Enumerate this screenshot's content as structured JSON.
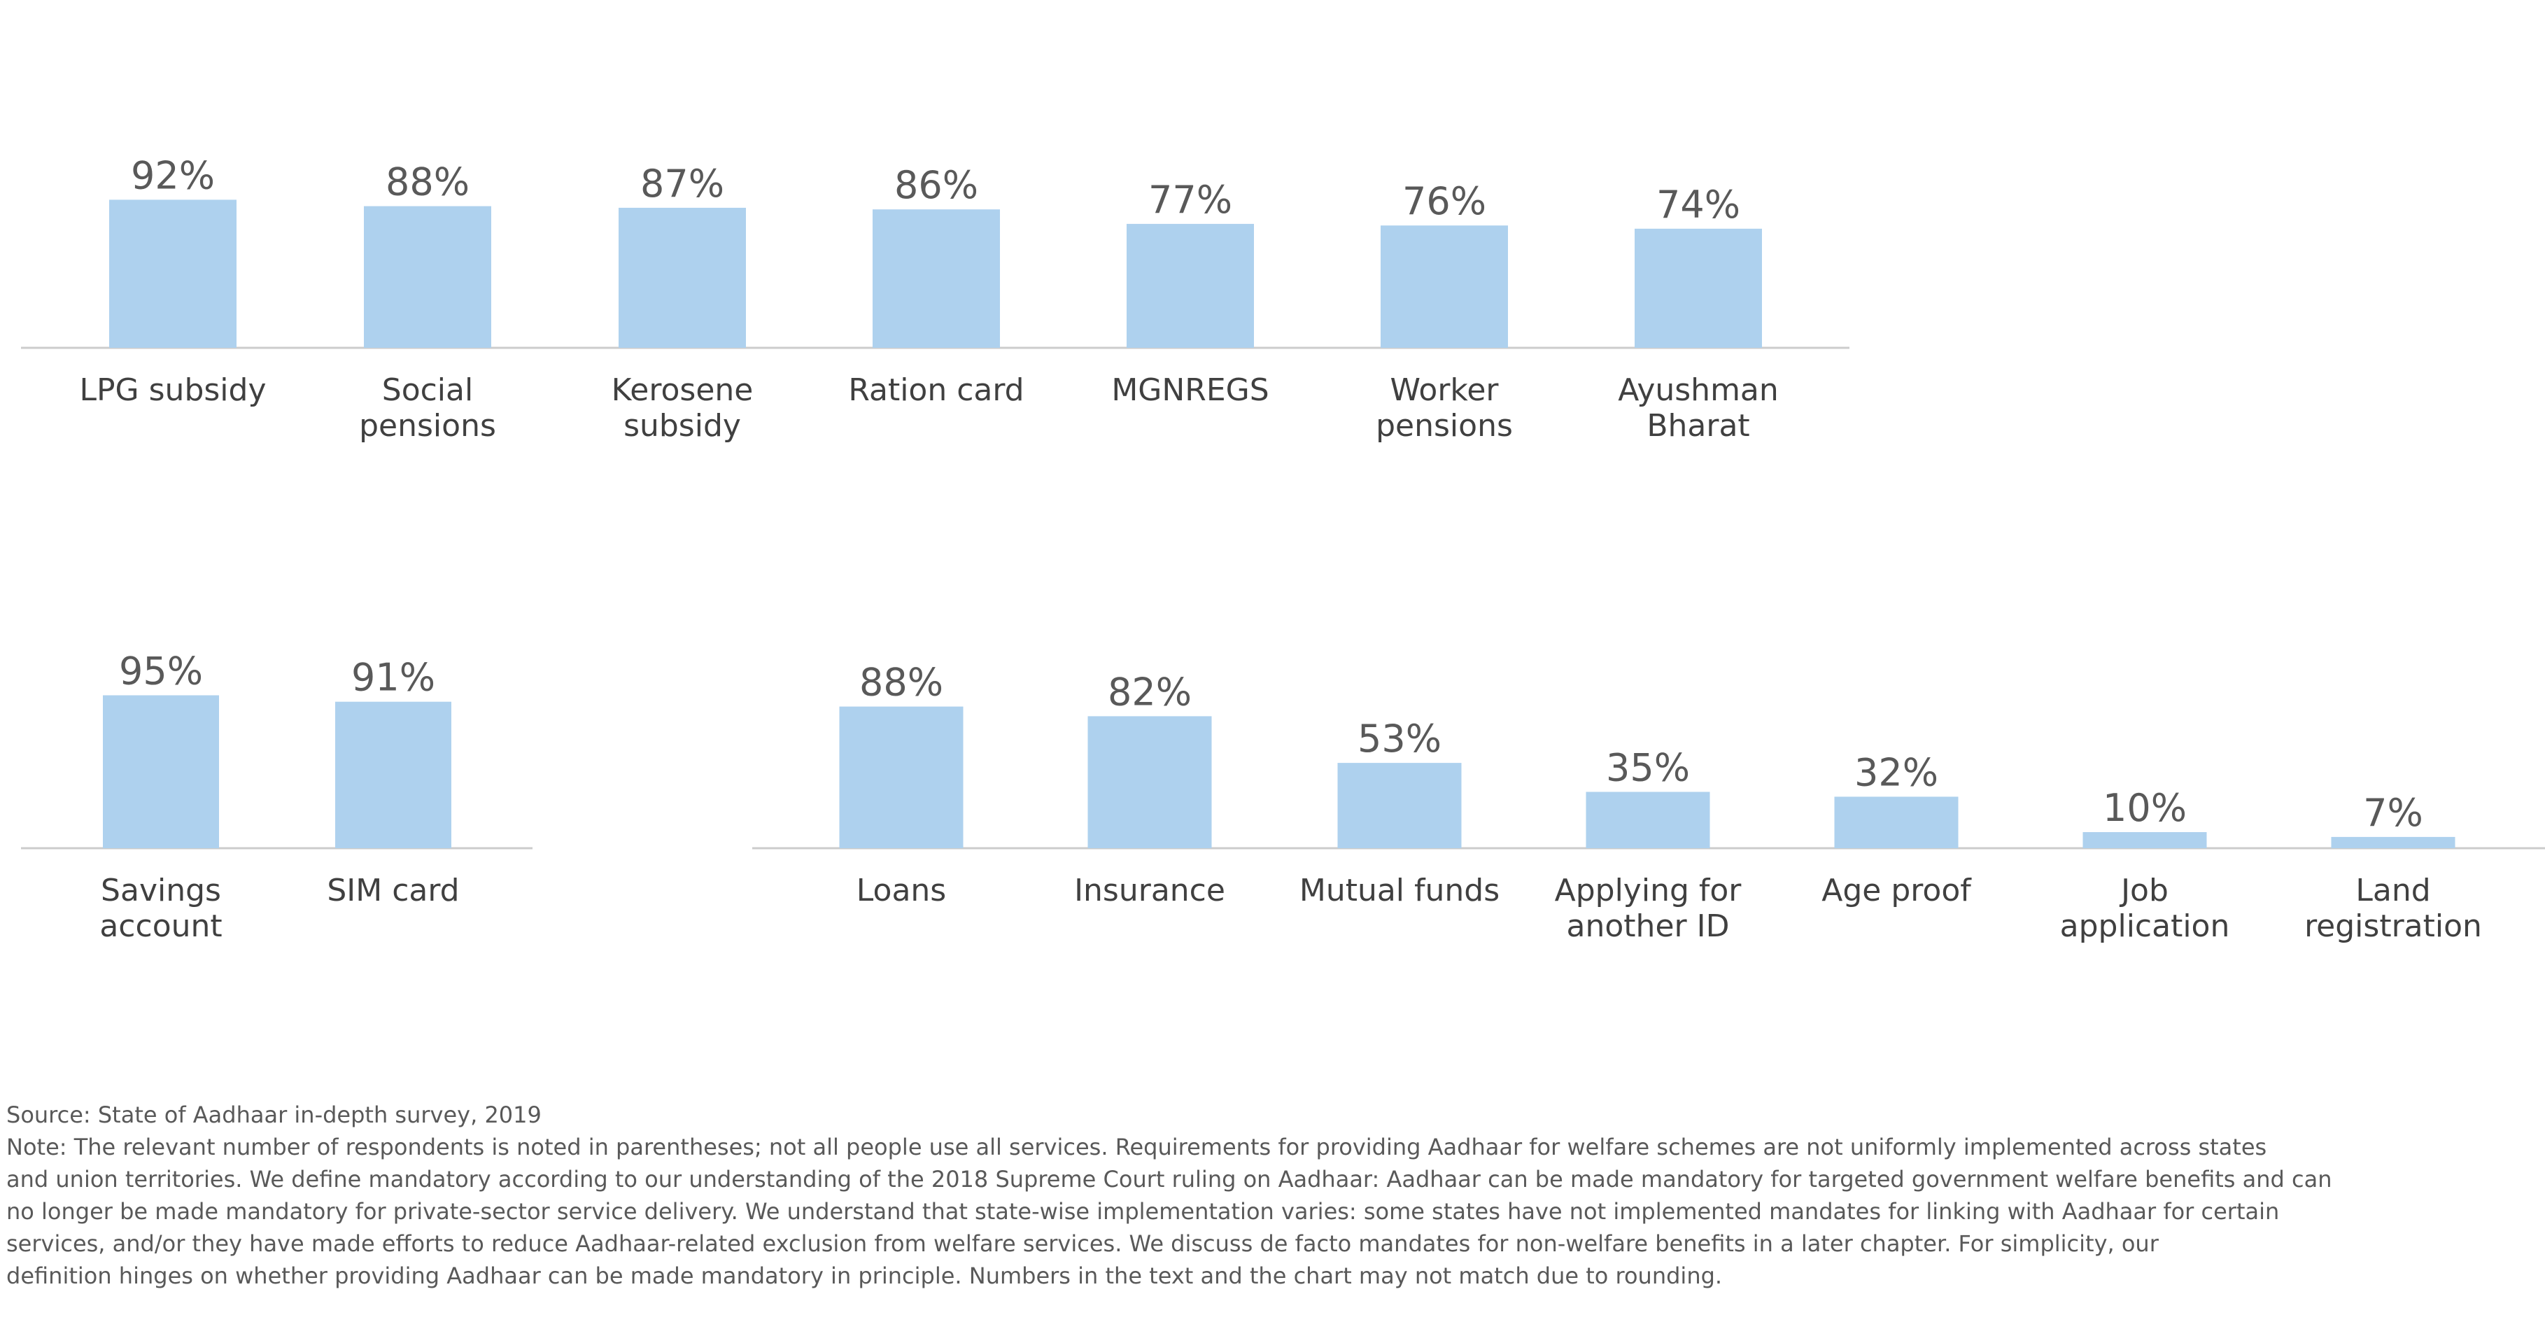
{
  "chart_data": [
    {
      "type": "bar",
      "categories": [
        "LPG subsidy",
        "Social\npensions",
        "Kerosene\nsubsidy",
        "Ration card",
        "MGNREGS",
        "Worker\npensions",
        "Ayushman\nBharat"
      ],
      "values": [
        92,
        88,
        87,
        86,
        77,
        76,
        74
      ],
      "value_labels": [
        "92%",
        "88%",
        "87%",
        "86%",
        "77%",
        "76%",
        "74%"
      ],
      "color": "#aed1ee"
    },
    {
      "type": "bar",
      "categories": [
        "Savings\naccount",
        "SIM card"
      ],
      "values": [
        95,
        91
      ],
      "value_labels": [
        "95%",
        "91%"
      ],
      "color": "#aed1ee"
    },
    {
      "type": "bar",
      "categories": [
        "Loans",
        "Insurance",
        "Mutual funds",
        "Applying for\nanother ID",
        "Age proof",
        "Job\napplication",
        "Land\nregistration"
      ],
      "values": [
        88,
        82,
        53,
        35,
        32,
        10,
        7
      ],
      "value_labels": [
        "88%",
        "82%",
        "53%",
        "35%",
        "32%",
        "10%",
        "7%"
      ],
      "color": "#aed1ee"
    }
  ],
  "footer": {
    "source": "Source: State of Aadhaar in-depth survey, 2019",
    "note_lines": [
      "Note: The relevant number of respondents is noted in parentheses; not all people use all services. Requirements for providing Aadhaar for welfare schemes are not uniformly implemented across states",
      "and union territories. We define mandatory according to our understanding of the 2018 Supreme Court ruling on Aadhaar: Aadhaar can be made mandatory for targeted government welfare benefits and can",
      "no longer be made mandatory for private-sector service delivery. We understand that state-wise implementation varies: some states have not implemented mandates for linking with Aadhaar for certain",
      "services, and/or they have made efforts to reduce Aadhaar-related exclusion from welfare services. We discuss de facto mandates for non-welfare benefits in a later chapter. For simplicity, our",
      "definition hinges on whether providing Aadhaar can be made mandatory in principle. Numbers in the text and the chart may not match due to rounding."
    ]
  }
}
